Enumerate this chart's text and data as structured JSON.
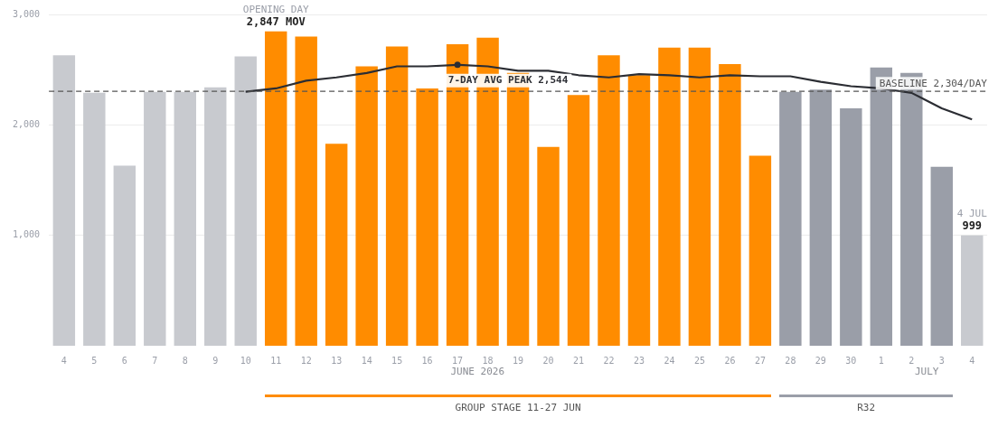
{
  "chart_data": {
    "type": "bar",
    "categories": [
      "4",
      "5",
      "6",
      "7",
      "8",
      "9",
      "10",
      "11",
      "12",
      "13",
      "14",
      "15",
      "16",
      "17",
      "18",
      "19",
      "20",
      "21",
      "22",
      "23",
      "24",
      "25",
      "26",
      "27",
      "28",
      "29",
      "30",
      "1",
      "2",
      "3",
      "4"
    ],
    "series": [
      {
        "colors": [
          "#c8cacf",
          "#c8cacf",
          "#c8cacf",
          "#c8cacf",
          "#c8cacf",
          "#c8cacf",
          "#c8cacf",
          "#ff8c00",
          "#ff8c00",
          "#ff8c00",
          "#ff8c00",
          "#ff8c00",
          "#ff8c00",
          "#ff8c00",
          "#ff8c00",
          "#ff8c00",
          "#ff8c00",
          "#ff8c00",
          "#ff8c00",
          "#ff8c00",
          "#ff8c00",
          "#ff8c00",
          "#ff8c00",
          "#ff8c00",
          "#9a9ea8",
          "#9a9ea8",
          "#9a9ea8",
          "#9a9ea8",
          "#9a9ea8",
          "#9a9ea8",
          "#c8cacf"
        ],
        "values": [
          2630,
          2290,
          1630,
          2300,
          2300,
          2340,
          2620,
          2847,
          2800,
          1830,
          2530,
          2710,
          2330,
          2730,
          2790,
          2470,
          1800,
          2270,
          2630,
          2450,
          2700,
          2700,
          2550,
          1720,
          2300,
          2320,
          2150,
          2520,
          2470,
          1620,
          999
        ],
        "value_labels": [
          null,
          null,
          null,
          null,
          null,
          null,
          null,
          "2,847 MOV",
          null,
          null,
          null,
          null,
          null,
          null,
          null,
          null,
          null,
          null,
          null,
          null,
          null,
          null,
          null,
          null,
          null,
          null,
          null,
          null,
          null,
          null,
          "999"
        ]
      },
      {
        "type": "line",
        "color": "#2b2d33",
        "values": [
          null,
          null,
          null,
          null,
          null,
          null,
          2300,
          2330,
          2400,
          2430,
          2470,
          2530,
          2530,
          2544,
          2530,
          2490,
          2490,
          2450,
          2430,
          2460,
          2450,
          2430,
          2450,
          2440,
          2440,
          2390,
          2350,
          2330,
          2290,
          2150,
          2050
        ]
      }
    ],
    "ylim": [
      0,
      3000
    ],
    "yticks": [
      {
        "value": 1000,
        "label": "1,000"
      },
      {
        "value": 2000,
        "label": "2,000"
      },
      {
        "value": 3000,
        "label": "3,000"
      }
    ],
    "grid": "y",
    "legend": false,
    "marker": "none",
    "ref_lines": [
      {
        "axis": "y",
        "value": 2304,
        "label": "BASELINE 2,304/DAY",
        "color": "#555555",
        "line_style": "dashed"
      }
    ],
    "annotations": [
      {
        "text": "OPENING DAY",
        "x": "11",
        "y": 2847
      },
      {
        "text": "7-DAY AVG PEAK 2,544",
        "x": "17",
        "y": 2544
      },
      "4 JUL",
      "JUNE 2026",
      "JULY",
      "GROUP STAGE 11-27 JUN",
      "R32"
    ]
  }
}
